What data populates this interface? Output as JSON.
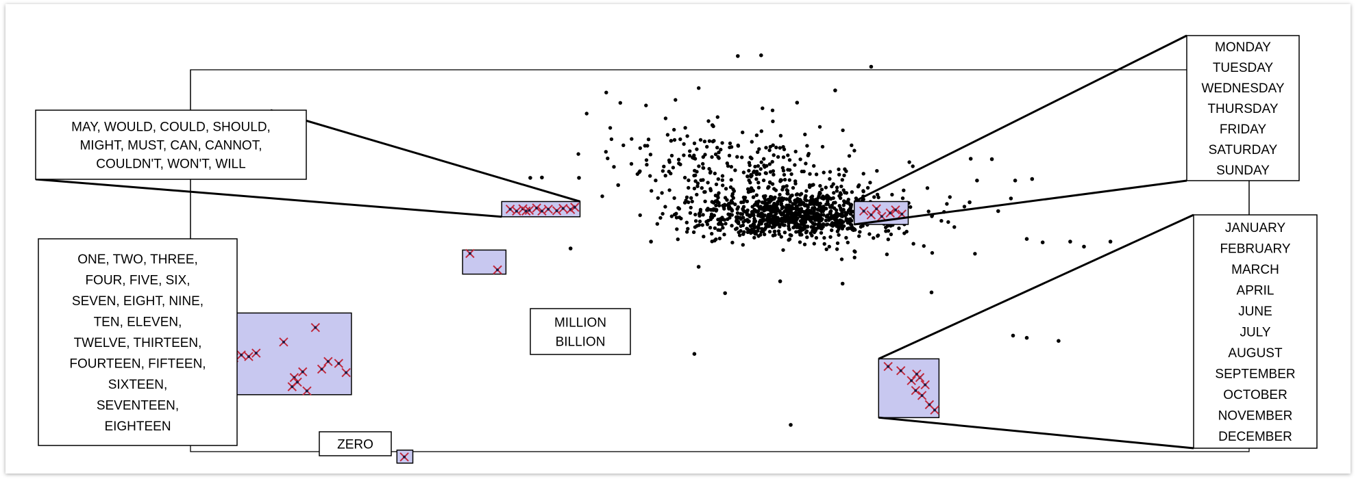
{
  "chart_data": {
    "type": "scatter",
    "title": "",
    "xlabel": "",
    "ylabel": "",
    "xlim": [
      0,
      100
    ],
    "ylim": [
      0,
      100
    ],
    "grid": false,
    "legend": "none",
    "colors": {
      "point": "#000000",
      "highlight_marker": "#c0283c",
      "highlight_box": "#c8c8f0",
      "frame": "#000000",
      "label_box_fill": "#ffffff"
    },
    "clusters": [
      {
        "name": "modals",
        "label_lines": [
          "MAY, WOULD, COULD, SHOULD,",
          "MIGHT, MUST, CAN, CANNOT,",
          "COULDN'T, WON'T, WILL"
        ],
        "box": {
          "x": [
            29.4,
            36.8
          ],
          "y": [
            61.5,
            65.5
          ]
        },
        "points": [
          [
            30.2,
            63.5
          ],
          [
            30.8,
            63.0
          ],
          [
            31.4,
            63.6
          ],
          [
            32.0,
            63.2
          ],
          [
            32.7,
            63.8
          ],
          [
            33.2,
            63.0
          ],
          [
            33.8,
            63.5
          ],
          [
            34.6,
            63.1
          ],
          [
            35.2,
            63.7
          ],
          [
            35.9,
            63.4
          ],
          [
            36.3,
            64.0
          ],
          [
            31.7,
            63.0
          ]
        ]
      },
      {
        "name": "numbers",
        "label_lines": [
          "ONE, TWO, THREE,",
          "FOUR, FIVE, SIX,",
          "SEVEN, EIGHT, NINE,",
          "TEN, ELEVEN,",
          "TWELVE, THIRTEEN,",
          "FOURTEEN, FIFTEEN,",
          "SIXTEEN,",
          "SEVENTEEN,",
          "EIGHTEEN"
        ],
        "box": {
          "x": [
            3.3,
            15.2
          ],
          "y": [
            14.9,
            36.3
          ]
        },
        "points": [
          [
            4.1,
            24.6
          ],
          [
            4.8,
            25.3
          ],
          [
            5.5,
            24.9
          ],
          [
            6.2,
            25.8
          ],
          [
            8.8,
            28.7
          ],
          [
            11.8,
            32.5
          ],
          [
            13.0,
            23.6
          ],
          [
            14.7,
            20.7
          ],
          [
            12.4,
            21.6
          ],
          [
            9.8,
            19.4
          ],
          [
            9.6,
            17.0
          ],
          [
            10.1,
            18.2
          ],
          [
            10.6,
            20.9
          ],
          [
            11.0,
            15.9
          ],
          [
            14.0,
            23.1
          ]
        ]
      },
      {
        "name": "million-billion",
        "label_lines": [
          "MILLION",
          "BILLION"
        ],
        "box": {
          "x": [
            25.7,
            29.8
          ],
          "y": [
            46.5,
            52.8
          ]
        },
        "points": [
          [
            26.4,
            51.9
          ],
          [
            29.0,
            47.6
          ]
        ]
      },
      {
        "name": "zero",
        "label_lines": [
          "ZERO"
        ],
        "box": {
          "x": [
            19.5,
            21.0
          ],
          "y": [
            -3.0,
            0.4
          ]
        },
        "points": [
          [
            20.2,
            -1.4
          ]
        ]
      },
      {
        "name": "weekdays",
        "label_lines": [
          "MONDAY",
          "TUESDAY",
          "WEDNESDAY",
          "THURSDAY",
          "FRIDAY",
          "SATURDAY",
          "SUNDAY"
        ],
        "box": {
          "x": [
            62.7,
            67.8
          ],
          "y": [
            59.5,
            65.5
          ]
        },
        "points": [
          [
            63.6,
            63.0
          ],
          [
            64.3,
            62.0
          ],
          [
            64.8,
            63.6
          ],
          [
            65.3,
            61.6
          ],
          [
            66.6,
            63.3
          ],
          [
            66.1,
            62.5
          ],
          [
            67.2,
            62.2
          ]
        ]
      },
      {
        "name": "months",
        "label_lines": [
          "JANUARY",
          "FEBRUARY",
          "MARCH",
          "APRIL",
          "JUNE",
          "JULY",
          "AUGUST",
          "SEPTEMBER",
          "OCTOBER",
          "NOVEMBER",
          "DECEMBER"
        ],
        "box": {
          "x": [
            65.0,
            70.7
          ],
          "y": [
            8.9,
            24.3
          ]
        },
        "points": [
          [
            65.9,
            22.3
          ],
          [
            67.1,
            21.2
          ],
          [
            68.1,
            18.6
          ],
          [
            68.9,
            19.4
          ],
          [
            69.4,
            17.5
          ],
          [
            68.5,
            16.0
          ],
          [
            69.1,
            14.7
          ],
          [
            69.8,
            12.3
          ],
          [
            70.3,
            10.9
          ],
          [
            68.6,
            20.3
          ]
        ]
      }
    ],
    "points": [
      [
        32.1,
        71.7
      ],
      [
        33.2,
        71.8
      ],
      [
        36.7,
        71.7
      ],
      [
        49.3,
        85.5
      ],
      [
        51.7,
        103.6
      ],
      [
        53.9,
        103.8
      ],
      [
        57.3,
        91.4
      ],
      [
        60.9,
        94.6
      ],
      [
        64.3,
        100.8
      ],
      [
        45.4,
        81.4
      ],
      [
        40.4,
        69.8
      ],
      [
        43.5,
        55.0
      ],
      [
        35.9,
        53.2
      ],
      [
        48.0,
        48.4
      ],
      [
        55.7,
        44.6
      ],
      [
        50.5,
        41.5
      ],
      [
        61.6,
        44.0
      ],
      [
        70.0,
        41.7
      ],
      [
        73.7,
        76.7
      ],
      [
        75.7,
        76.6
      ],
      [
        74.3,
        71.0
      ],
      [
        77.9,
        71.0
      ],
      [
        73.6,
        65.3
      ],
      [
        77.5,
        66.3
      ],
      [
        79.0,
        55.7
      ],
      [
        80.5,
        54.8
      ],
      [
        83.1,
        55.0
      ],
      [
        84.4,
        53.7
      ],
      [
        86.9,
        55.0
      ],
      [
        77.7,
        30.4
      ],
      [
        79.0,
        29.8
      ],
      [
        82.0,
        29.0
      ],
      [
        47.6,
        25.6
      ],
      [
        56.7,
        7.0
      ],
      [
        79.5,
        71.4
      ],
      [
        76.3,
        63.0
      ]
    ],
    "dense_cloud": {
      "count": 1300,
      "core": {
        "x_center": 57.0,
        "y_center": 62.0,
        "x_spread": 5.0,
        "y_spread": 2.8
      },
      "wing": {
        "x_center": 55.0,
        "y_center": 70.0,
        "x_spread": 6.5,
        "y_spread": 7.5
      }
    }
  }
}
